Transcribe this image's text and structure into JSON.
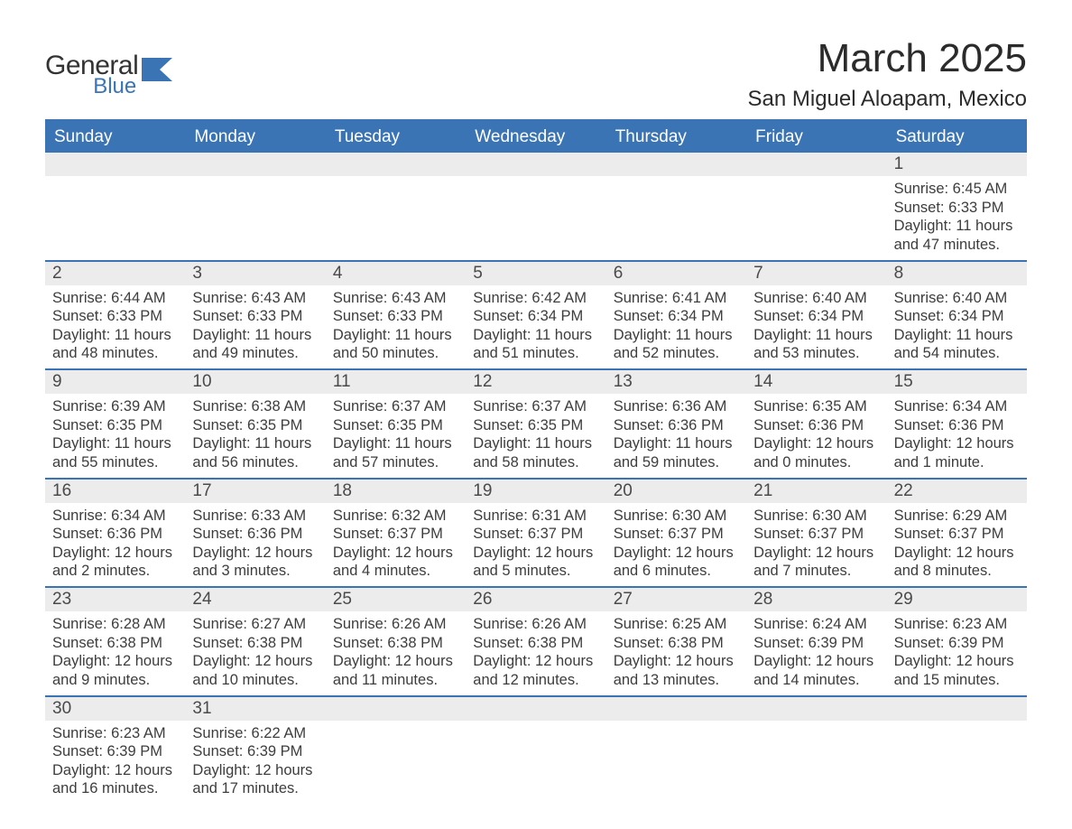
{
  "brand": {
    "general": "General",
    "blue": "Blue"
  },
  "title": "March 2025",
  "location": "San Miguel Aloapam, Mexico",
  "colors": {
    "header_bg": "#3b74b4",
    "header_text": "#ffffff",
    "daynum_bg": "#ececec",
    "text": "#3a3a3a",
    "rule": "#3b74b4"
  },
  "day_headers": [
    "Sunday",
    "Monday",
    "Tuesday",
    "Wednesday",
    "Thursday",
    "Friday",
    "Saturday"
  ],
  "weeks": [
    {
      "first": true,
      "days": [
        {
          "n": "",
          "sunrise": "",
          "sunset": "",
          "daylight": ""
        },
        {
          "n": "",
          "sunrise": "",
          "sunset": "",
          "daylight": ""
        },
        {
          "n": "",
          "sunrise": "",
          "sunset": "",
          "daylight": ""
        },
        {
          "n": "",
          "sunrise": "",
          "sunset": "",
          "daylight": ""
        },
        {
          "n": "",
          "sunrise": "",
          "sunset": "",
          "daylight": ""
        },
        {
          "n": "",
          "sunrise": "",
          "sunset": "",
          "daylight": ""
        },
        {
          "n": "1",
          "sunrise": "Sunrise: 6:45 AM",
          "sunset": "Sunset: 6:33 PM",
          "daylight": "Daylight: 11 hours and 47 minutes."
        }
      ]
    },
    {
      "days": [
        {
          "n": "2",
          "sunrise": "Sunrise: 6:44 AM",
          "sunset": "Sunset: 6:33 PM",
          "daylight": "Daylight: 11 hours and 48 minutes."
        },
        {
          "n": "3",
          "sunrise": "Sunrise: 6:43 AM",
          "sunset": "Sunset: 6:33 PM",
          "daylight": "Daylight: 11 hours and 49 minutes."
        },
        {
          "n": "4",
          "sunrise": "Sunrise: 6:43 AM",
          "sunset": "Sunset: 6:33 PM",
          "daylight": "Daylight: 11 hours and 50 minutes."
        },
        {
          "n": "5",
          "sunrise": "Sunrise: 6:42 AM",
          "sunset": "Sunset: 6:34 PM",
          "daylight": "Daylight: 11 hours and 51 minutes."
        },
        {
          "n": "6",
          "sunrise": "Sunrise: 6:41 AM",
          "sunset": "Sunset: 6:34 PM",
          "daylight": "Daylight: 11 hours and 52 minutes."
        },
        {
          "n": "7",
          "sunrise": "Sunrise: 6:40 AM",
          "sunset": "Sunset: 6:34 PM",
          "daylight": "Daylight: 11 hours and 53 minutes."
        },
        {
          "n": "8",
          "sunrise": "Sunrise: 6:40 AM",
          "sunset": "Sunset: 6:34 PM",
          "daylight": "Daylight: 11 hours and 54 minutes."
        }
      ]
    },
    {
      "days": [
        {
          "n": "9",
          "sunrise": "Sunrise: 6:39 AM",
          "sunset": "Sunset: 6:35 PM",
          "daylight": "Daylight: 11 hours and 55 minutes."
        },
        {
          "n": "10",
          "sunrise": "Sunrise: 6:38 AM",
          "sunset": "Sunset: 6:35 PM",
          "daylight": "Daylight: 11 hours and 56 minutes."
        },
        {
          "n": "11",
          "sunrise": "Sunrise: 6:37 AM",
          "sunset": "Sunset: 6:35 PM",
          "daylight": "Daylight: 11 hours and 57 minutes."
        },
        {
          "n": "12",
          "sunrise": "Sunrise: 6:37 AM",
          "sunset": "Sunset: 6:35 PM",
          "daylight": "Daylight: 11 hours and 58 minutes."
        },
        {
          "n": "13",
          "sunrise": "Sunrise: 6:36 AM",
          "sunset": "Sunset: 6:36 PM",
          "daylight": "Daylight: 11 hours and 59 minutes."
        },
        {
          "n": "14",
          "sunrise": "Sunrise: 6:35 AM",
          "sunset": "Sunset: 6:36 PM",
          "daylight": "Daylight: 12 hours and 0 minutes."
        },
        {
          "n": "15",
          "sunrise": "Sunrise: 6:34 AM",
          "sunset": "Sunset: 6:36 PM",
          "daylight": "Daylight: 12 hours and 1 minute."
        }
      ]
    },
    {
      "days": [
        {
          "n": "16",
          "sunrise": "Sunrise: 6:34 AM",
          "sunset": "Sunset: 6:36 PM",
          "daylight": "Daylight: 12 hours and 2 minutes."
        },
        {
          "n": "17",
          "sunrise": "Sunrise: 6:33 AM",
          "sunset": "Sunset: 6:36 PM",
          "daylight": "Daylight: 12 hours and 3 minutes."
        },
        {
          "n": "18",
          "sunrise": "Sunrise: 6:32 AM",
          "sunset": "Sunset: 6:37 PM",
          "daylight": "Daylight: 12 hours and 4 minutes."
        },
        {
          "n": "19",
          "sunrise": "Sunrise: 6:31 AM",
          "sunset": "Sunset: 6:37 PM",
          "daylight": "Daylight: 12 hours and 5 minutes."
        },
        {
          "n": "20",
          "sunrise": "Sunrise: 6:30 AM",
          "sunset": "Sunset: 6:37 PM",
          "daylight": "Daylight: 12 hours and 6 minutes."
        },
        {
          "n": "21",
          "sunrise": "Sunrise: 6:30 AM",
          "sunset": "Sunset: 6:37 PM",
          "daylight": "Daylight: 12 hours and 7 minutes."
        },
        {
          "n": "22",
          "sunrise": "Sunrise: 6:29 AM",
          "sunset": "Sunset: 6:37 PM",
          "daylight": "Daylight: 12 hours and 8 minutes."
        }
      ]
    },
    {
      "days": [
        {
          "n": "23",
          "sunrise": "Sunrise: 6:28 AM",
          "sunset": "Sunset: 6:38 PM",
          "daylight": "Daylight: 12 hours and 9 minutes."
        },
        {
          "n": "24",
          "sunrise": "Sunrise: 6:27 AM",
          "sunset": "Sunset: 6:38 PM",
          "daylight": "Daylight: 12 hours and 10 minutes."
        },
        {
          "n": "25",
          "sunrise": "Sunrise: 6:26 AM",
          "sunset": "Sunset: 6:38 PM",
          "daylight": "Daylight: 12 hours and 11 minutes."
        },
        {
          "n": "26",
          "sunrise": "Sunrise: 6:26 AM",
          "sunset": "Sunset: 6:38 PM",
          "daylight": "Daylight: 12 hours and 12 minutes."
        },
        {
          "n": "27",
          "sunrise": "Sunrise: 6:25 AM",
          "sunset": "Sunset: 6:38 PM",
          "daylight": "Daylight: 12 hours and 13 minutes."
        },
        {
          "n": "28",
          "sunrise": "Sunrise: 6:24 AM",
          "sunset": "Sunset: 6:39 PM",
          "daylight": "Daylight: 12 hours and 14 minutes."
        },
        {
          "n": "29",
          "sunrise": "Sunrise: 6:23 AM",
          "sunset": "Sunset: 6:39 PM",
          "daylight": "Daylight: 12 hours and 15 minutes."
        }
      ]
    },
    {
      "days": [
        {
          "n": "30",
          "sunrise": "Sunrise: 6:23 AM",
          "sunset": "Sunset: 6:39 PM",
          "daylight": "Daylight: 12 hours and 16 minutes."
        },
        {
          "n": "31",
          "sunrise": "Sunrise: 6:22 AM",
          "sunset": "Sunset: 6:39 PM",
          "daylight": "Daylight: 12 hours and 17 minutes."
        },
        {
          "n": "",
          "sunrise": "",
          "sunset": "",
          "daylight": ""
        },
        {
          "n": "",
          "sunrise": "",
          "sunset": "",
          "daylight": ""
        },
        {
          "n": "",
          "sunrise": "",
          "sunset": "",
          "daylight": ""
        },
        {
          "n": "",
          "sunrise": "",
          "sunset": "",
          "daylight": ""
        },
        {
          "n": "",
          "sunrise": "",
          "sunset": "",
          "daylight": ""
        }
      ]
    }
  ]
}
